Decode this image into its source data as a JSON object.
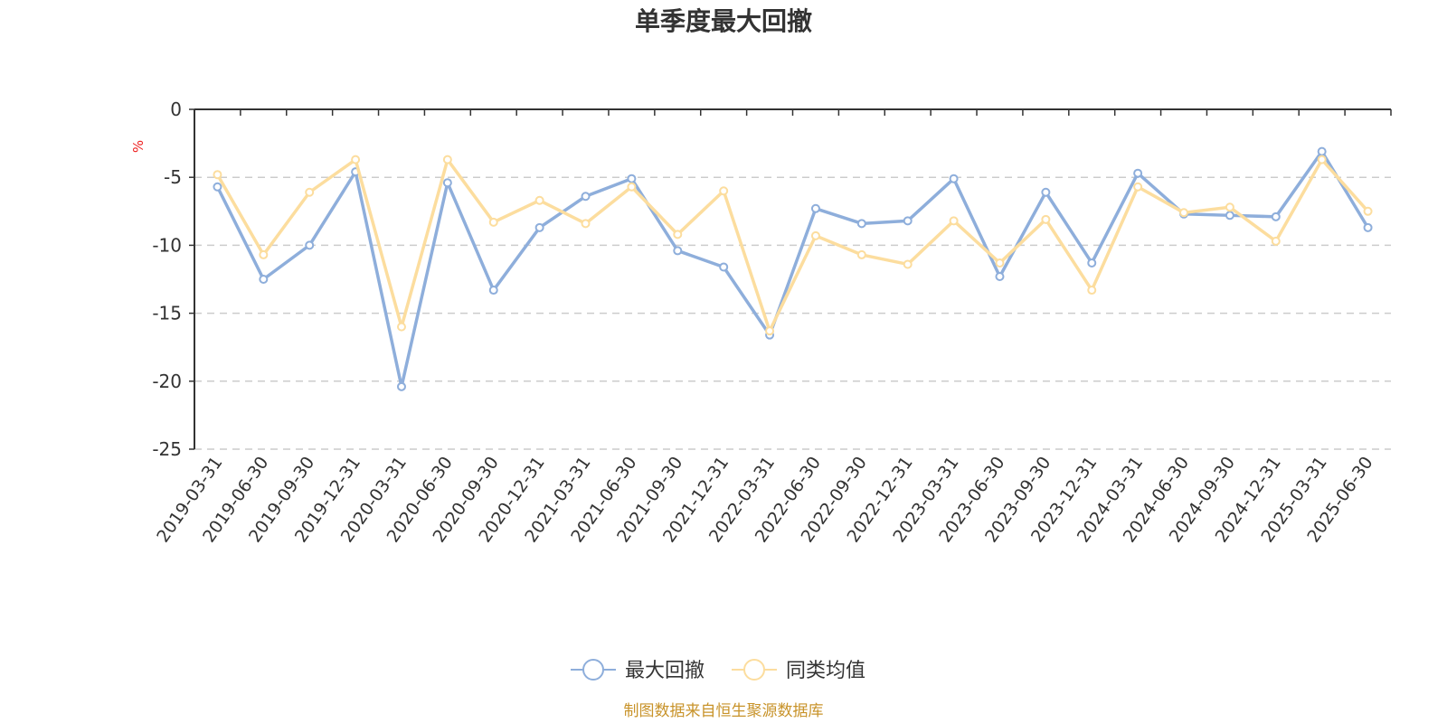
{
  "chart_data": {
    "type": "line",
    "title": "单季度最大回撤",
    "ylabel": "%",
    "xlabel": "",
    "ylim": [
      -25,
      0
    ],
    "yticks": [
      0,
      -5,
      -10,
      -15,
      -20,
      -25
    ],
    "grid": true,
    "legend_position": "bottom",
    "categories": [
      "2019-03-31",
      "2019-06-30",
      "2019-09-30",
      "2019-12-31",
      "2020-03-31",
      "2020-06-30",
      "2020-09-30",
      "2020-12-31",
      "2021-03-31",
      "2021-06-30",
      "2021-09-30",
      "2021-12-31",
      "2022-03-31",
      "2022-06-30",
      "2022-09-30",
      "2022-12-31",
      "2023-03-31",
      "2023-06-30",
      "2023-09-30",
      "2023-12-31",
      "2024-03-31",
      "2024-06-30",
      "2024-09-30",
      "2024-12-31",
      "2025-03-31",
      "2025-06-30"
    ],
    "series": [
      {
        "name": "最大回撤",
        "color": "#8eaedb",
        "values": [
          -5.7,
          -12.5,
          -10.0,
          -4.6,
          -20.4,
          -5.4,
          -13.3,
          -8.7,
          -6.4,
          -5.1,
          -10.4,
          -11.6,
          -16.6,
          -7.3,
          -8.4,
          -8.2,
          -5.1,
          -12.3,
          -6.1,
          -11.3,
          -4.7,
          -7.7,
          -7.8,
          -7.9,
          -3.1,
          -8.7
        ]
      },
      {
        "name": "同类均值",
        "color": "#fcdd9e",
        "values": [
          -4.8,
          -10.7,
          -6.1,
          -3.7,
          -16.0,
          -3.7,
          -8.3,
          -6.7,
          -8.4,
          -5.7,
          -9.2,
          -6.0,
          -16.3,
          -9.3,
          -10.7,
          -11.4,
          -8.2,
          -11.3,
          -8.1,
          -13.3,
          -5.7,
          -7.6,
          -7.2,
          -9.7,
          -3.7,
          -7.5
        ]
      }
    ],
    "source": "制图数据来自恒生聚源数据库"
  }
}
